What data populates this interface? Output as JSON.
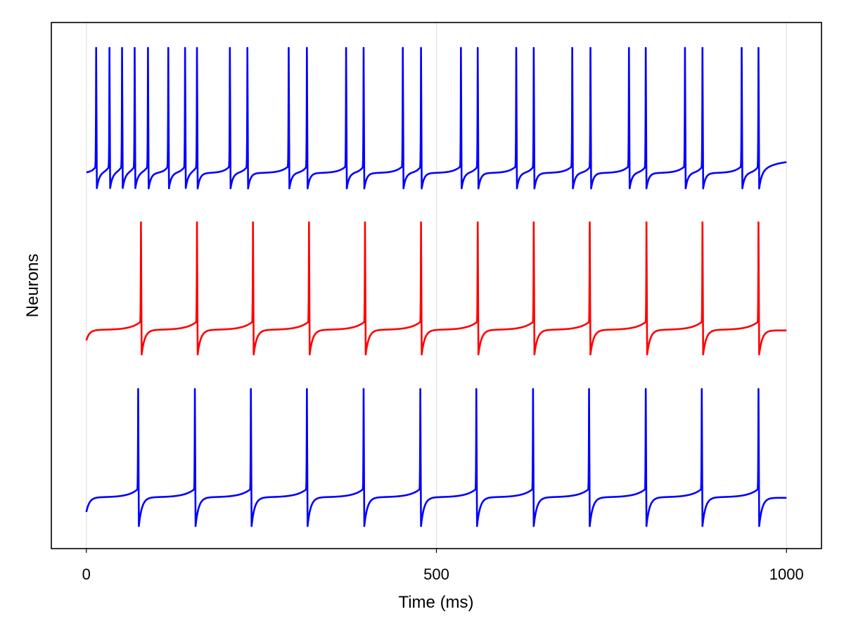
{
  "chart_data": {
    "type": "line",
    "xlabel": "Time (ms)",
    "ylabel": "Neurons",
    "xlim": [
      -50,
      1050
    ],
    "xticks": [
      0,
      500,
      1000
    ],
    "xtick_labels": [
      "0",
      "500",
      "1000"
    ],
    "yticks_shown": false,
    "grid": {
      "vertical": true,
      "horizontal": false
    },
    "duration_ms": 1000,
    "series": [
      {
        "color": "#0000ff",
        "spike_times": [
          14,
          33,
          51,
          69,
          88,
          117,
          141,
          158,
          205,
          230,
          289,
          315,
          371,
          396,
          452,
          478,
          535,
          559,
          614,
          639,
          694,
          720,
          775,
          799,
          855,
          880,
          936,
          960
        ]
      },
      {
        "color": "#ff0000",
        "spike_times": [
          78,
          158,
          238,
          318,
          398,
          478,
          559,
          639,
          719,
          800,
          880,
          960
        ]
      },
      {
        "color": "#0000ff",
        "spike_times": [
          74,
          155,
          235,
          315,
          396,
          477,
          557,
          638,
          718,
          799,
          879,
          960
        ]
      }
    ]
  }
}
